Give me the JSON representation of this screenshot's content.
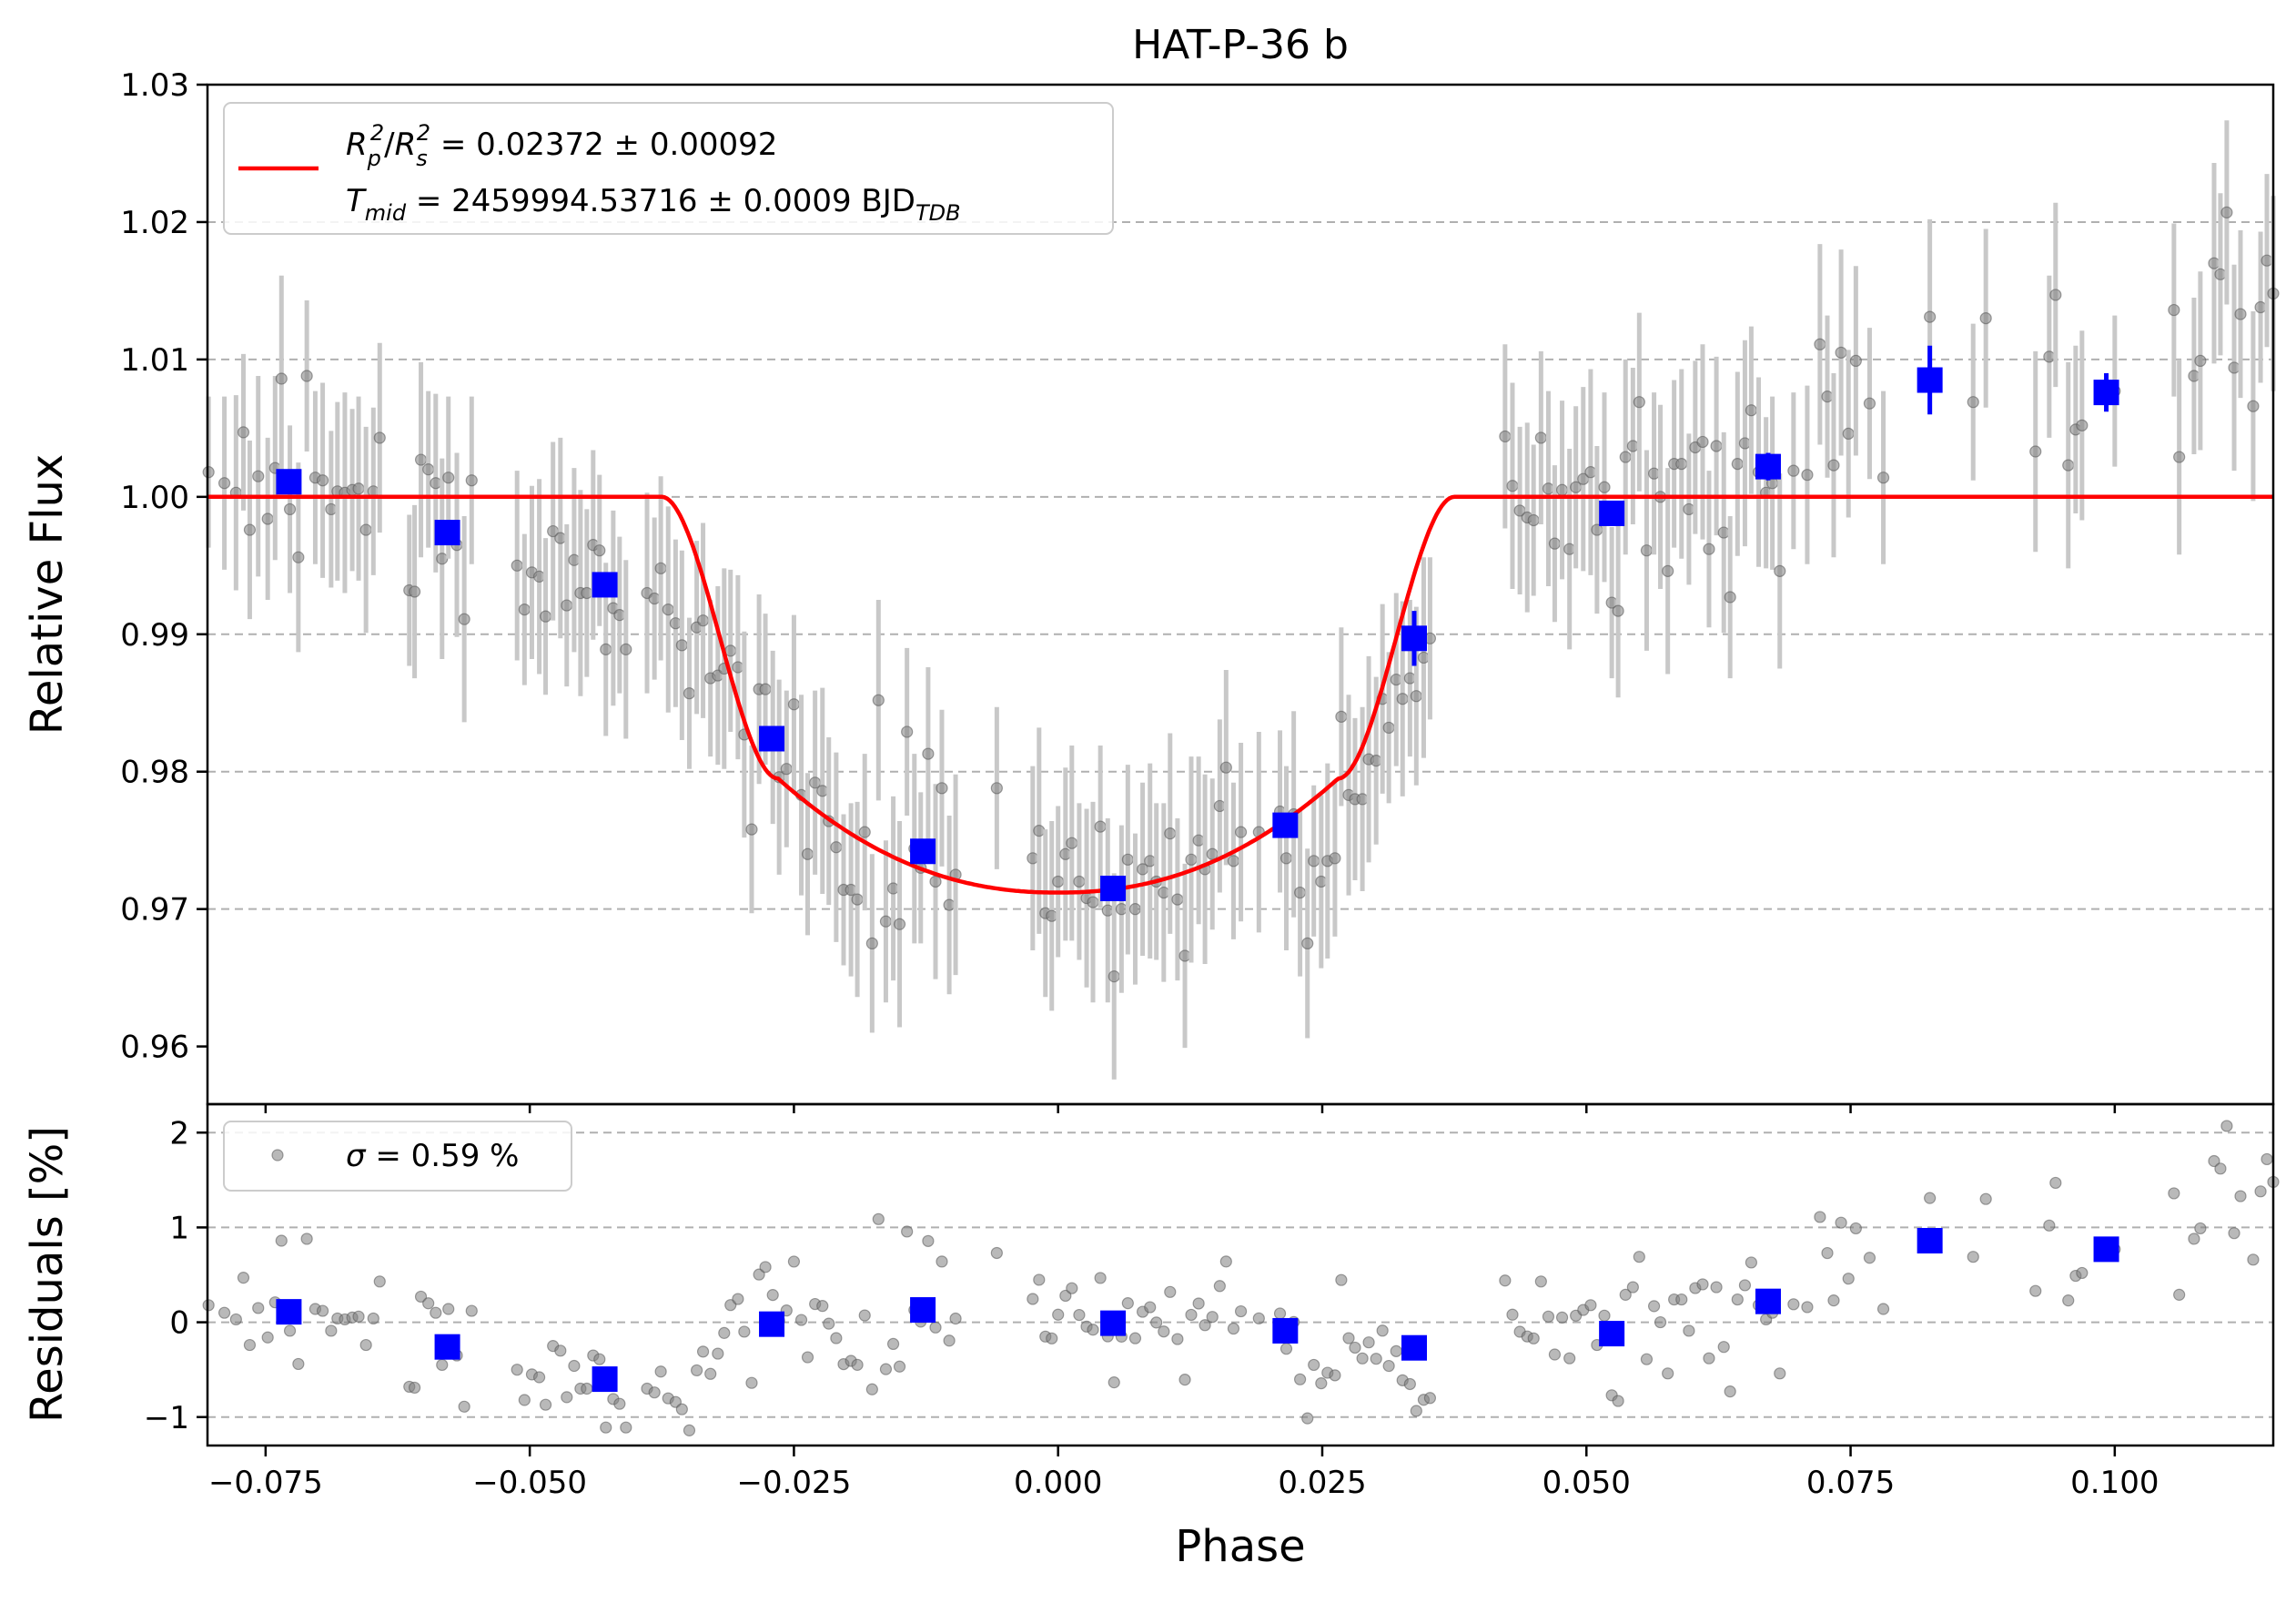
{
  "chart_data": [
    {
      "type": "scatter",
      "panel": "top",
      "title": "HAT-P-36 b",
      "xlabel": "",
      "ylabel": "Relative Flux",
      "xlim": [
        -0.0805,
        0.115
      ],
      "ylim": [
        0.9558,
        1.03
      ],
      "yticks": [
        0.96,
        0.97,
        0.98,
        0.99,
        1.0,
        1.01,
        1.02,
        1.03
      ],
      "ytick_labels": [
        "0.96",
        "0.97",
        "0.98",
        "0.99",
        "1.00",
        "1.01",
        "1.02",
        "1.03"
      ],
      "grid": "y-dashed",
      "legend_placement": "upper-left",
      "legend": {
        "model_label_a": "R",
        "model_label_a_sub": "p",
        "model_label_a_sup": "2",
        "model_label_b": "R",
        "model_label_b_sub": "s",
        "model_label_b_sup": "2",
        "model_label_value": " = 0.02372 ± 0.00092",
        "tmid_label": "T",
        "tmid_sub": "mid",
        "tmid_value": " = 2459994.53716 ± 0.0009 BJD",
        "tmid_unit_sub": "TDB"
      },
      "model_transit": {
        "depth_rp2_rs2": 0.02372,
        "ingress_start": -0.0375,
        "ingress_end": -0.0265,
        "egress_start": 0.0265,
        "egress_end": 0.0375,
        "minimum_flux": 0.9712,
        "contact_flux": 0.9795
      },
      "binned": [
        {
          "x": -0.0728,
          "y": 1.0011,
          "err": 0.0006
        },
        {
          "x": -0.0578,
          "y": 0.9974,
          "err": 0.0006
        },
        {
          "x": -0.0429,
          "y": 0.9936,
          "err": 0.0006
        },
        {
          "x": -0.0271,
          "y": 0.9824,
          "err": 0.0007
        },
        {
          "x": -0.0128,
          "y": 0.9742,
          "err": 0.0009
        },
        {
          "x": 0.0052,
          "y": 0.9715,
          "err": 0.0006
        },
        {
          "x": 0.0215,
          "y": 0.9761,
          "err": 0.0006
        },
        {
          "x": 0.0337,
          "y": 0.9897,
          "err": 0.002
        },
        {
          "x": 0.0524,
          "y": 0.9988,
          "err": 0.0006
        },
        {
          "x": 0.0672,
          "y": 1.0022,
          "err": 0.001
        },
        {
          "x": 0.0825,
          "y": 1.0085,
          "err": 0.0025
        },
        {
          "x": 0.0992,
          "y": 1.0076,
          "err": 0.0014
        }
      ],
      "raw_points": [
        [
          -0.0804,
          1.0018
        ],
        [
          -0.0789,
          1.001
        ],
        [
          -0.0778,
          1.0003
        ],
        [
          -0.0771,
          1.0047
        ],
        [
          -0.0765,
          0.9976
        ],
        [
          -0.0757,
          1.0015
        ],
        [
          -0.0748,
          0.9984
        ],
        [
          -0.0741,
          1.0021
        ],
        [
          -0.0735,
          1.0086
        ],
        [
          -0.0727,
          0.9991
        ],
        [
          -0.0719,
          0.9956
        ],
        [
          -0.0711,
          1.0088
        ],
        [
          -0.0703,
          1.0014
        ],
        [
          -0.0696,
          1.0012
        ],
        [
          -0.0688,
          0.9991
        ],
        [
          -0.0682,
          1.0004
        ],
        [
          -0.0675,
          1.0003
        ],
        [
          -0.0668,
          1.0005
        ],
        [
          -0.0662,
          1.0006
        ],
        [
          -0.0655,
          0.9976
        ],
        [
          -0.0648,
          1.0004
        ],
        [
          -0.0642,
          1.0043
        ],
        [
          -0.0614,
          0.9932
        ],
        [
          -0.0609,
          0.9931
        ],
        [
          -0.0603,
          1.0027
        ],
        [
          -0.0596,
          1.002
        ],
        [
          -0.0589,
          1.001
        ],
        [
          -0.0583,
          0.9955
        ],
        [
          -0.0577,
          1.0014
        ],
        [
          -0.0569,
          0.9965
        ],
        [
          -0.0562,
          0.9911
        ],
        [
          -0.0555,
          1.0012
        ],
        [
          -0.0512,
          0.995
        ],
        [
          -0.0505,
          0.9918
        ],
        [
          -0.0498,
          0.9945
        ],
        [
          -0.0491,
          0.9942
        ],
        [
          -0.0485,
          0.9913
        ],
        [
          -0.0478,
          0.9975
        ],
        [
          -0.0471,
          0.997
        ],
        [
          -0.0465,
          0.9921
        ],
        [
          -0.0458,
          0.9954
        ],
        [
          -0.0452,
          0.993
        ],
        [
          -0.0446,
          0.993
        ],
        [
          -0.044,
          0.9965
        ],
        [
          -0.0434,
          0.9961
        ],
        [
          -0.0428,
          0.9889
        ],
        [
          -0.0421,
          0.9919
        ],
        [
          -0.0415,
          0.9914
        ],
        [
          -0.0409,
          0.9889
        ],
        [
          -0.0389,
          0.993
        ],
        [
          -0.0382,
          0.9926
        ],
        [
          -0.0376,
          0.9948
        ],
        [
          -0.0369,
          0.9918
        ],
        [
          -0.0362,
          0.9908
        ],
        [
          -0.0356,
          0.9892
        ],
        [
          -0.0349,
          0.9857
        ],
        [
          -0.0342,
          0.9905
        ],
        [
          -0.0336,
          0.991
        ],
        [
          -0.0329,
          0.9868
        ],
        [
          -0.0322,
          0.987
        ],
        [
          -0.0316,
          0.9875
        ],
        [
          -0.031,
          0.9888
        ],
        [
          -0.0303,
          0.9876
        ],
        [
          -0.0297,
          0.9827
        ],
        [
          -0.029,
          0.9758
        ],
        [
          -0.0283,
          0.986
        ],
        [
          -0.0277,
          0.986
        ],
        [
          -0.027,
          0.9825
        ],
        [
          -0.0264,
          0.9796
        ],
        [
          -0.0257,
          0.9802
        ],
        [
          -0.025,
          0.9849
        ],
        [
          -0.0243,
          0.9783
        ],
        [
          -0.0237,
          0.974
        ],
        [
          -0.023,
          0.9792
        ],
        [
          -0.0223,
          0.9786
        ],
        [
          -0.0217,
          0.9764
        ],
        [
          -0.021,
          0.9745
        ],
        [
          -0.0203,
          0.9714
        ],
        [
          -0.0196,
          0.9714
        ],
        [
          -0.019,
          0.9707
        ],
        [
          -0.0183,
          0.9756
        ],
        [
          -0.0176,
          0.9675
        ],
        [
          -0.017,
          0.9852
        ],
        [
          -0.0163,
          0.9691
        ],
        [
          -0.0156,
          0.9715
        ],
        [
          -0.015,
          0.9689
        ],
        [
          -0.0143,
          0.9829
        ],
        [
          -0.0136,
          0.9744
        ],
        [
          -0.013,
          0.973
        ],
        [
          -0.0123,
          0.9813
        ],
        [
          -0.0116,
          0.972
        ],
        [
          -0.011,
          0.9788
        ],
        [
          -0.0103,
          0.9703
        ],
        [
          -0.0097,
          0.9725
        ],
        [
          -0.0058,
          0.9788
        ],
        [
          -0.0024,
          0.9737
        ],
        [
          -0.0018,
          0.9757
        ],
        [
          -0.0012,
          0.9697
        ],
        [
          -0.0006,
          0.9695
        ],
        [
          0.0,
          0.972
        ],
        [
          0.0007,
          0.974
        ],
        [
          0.0013,
          0.9748
        ],
        [
          0.002,
          0.972
        ],
        [
          0.0027,
          0.9708
        ],
        [
          0.0033,
          0.9705
        ],
        [
          0.004,
          0.976
        ],
        [
          0.0047,
          0.9699
        ],
        [
          0.0053,
          0.9651
        ],
        [
          0.006,
          0.97
        ],
        [
          0.0066,
          0.9736
        ],
        [
          0.0073,
          0.97
        ],
        [
          0.008,
          0.9729
        ],
        [
          0.0087,
          0.9735
        ],
        [
          0.0093,
          0.972
        ],
        [
          0.01,
          0.9712
        ],
        [
          0.0106,
          0.9755
        ],
        [
          0.0113,
          0.9707
        ],
        [
          0.012,
          0.9666
        ],
        [
          0.0126,
          0.9736
        ],
        [
          0.0133,
          0.975
        ],
        [
          0.0139,
          0.9729
        ],
        [
          0.0146,
          0.974
        ],
        [
          0.0153,
          0.9775
        ],
        [
          0.0159,
          0.9803
        ],
        [
          0.0166,
          0.9735
        ],
        [
          0.0173,
          0.9756
        ],
        [
          0.019,
          0.9756
        ],
        [
          0.021,
          0.9771
        ],
        [
          0.0216,
          0.9737
        ],
        [
          0.0223,
          0.9769
        ],
        [
          0.0229,
          0.9712
        ],
        [
          0.0236,
          0.9675
        ],
        [
          0.0242,
          0.9735
        ],
        [
          0.0249,
          0.972
        ],
        [
          0.0255,
          0.9735
        ],
        [
          0.0262,
          0.9737
        ],
        [
          0.0268,
          0.984
        ],
        [
          0.0275,
          0.9783
        ],
        [
          0.0281,
          0.978
        ],
        [
          0.0288,
          0.978
        ],
        [
          0.0294,
          0.9809
        ],
        [
          0.0301,
          0.9808
        ],
        [
          0.0307,
          0.9853
        ],
        [
          0.0313,
          0.9832
        ],
        [
          0.032,
          0.9867
        ],
        [
          0.0326,
          0.9853
        ],
        [
          0.0333,
          0.9868
        ],
        [
          0.0339,
          0.9855
        ],
        [
          0.0346,
          0.9883
        ],
        [
          0.0352,
          0.9897
        ],
        [
          0.0423,
          1.0044
        ],
        [
          0.043,
          1.0008
        ],
        [
          0.0437,
          0.999
        ],
        [
          0.0444,
          0.9985
        ],
        [
          0.045,
          0.9983
        ],
        [
          0.0457,
          1.0043
        ],
        [
          0.0464,
          1.0006
        ],
        [
          0.047,
          0.9966
        ],
        [
          0.0477,
          1.0005
        ],
        [
          0.0484,
          0.9962
        ],
        [
          0.049,
          1.0007
        ],
        [
          0.0497,
          1.0013
        ],
        [
          0.0504,
          1.0018
        ],
        [
          0.051,
          0.9976
        ],
        [
          0.0517,
          1.0007
        ],
        [
          0.0524,
          0.9923
        ],
        [
          0.053,
          0.9917
        ],
        [
          0.0537,
          1.0029
        ],
        [
          0.0544,
          1.0037
        ],
        [
          0.055,
          1.0069
        ],
        [
          0.0557,
          0.9961
        ],
        [
          0.0564,
          1.0017
        ],
        [
          0.057,
          1.0
        ],
        [
          0.0577,
          0.9946
        ],
        [
          0.0583,
          1.0024
        ],
        [
          0.059,
          1.0024
        ],
        [
          0.0597,
          0.9991
        ],
        [
          0.0603,
          1.0036
        ],
        [
          0.061,
          1.004
        ],
        [
          0.0616,
          0.9962
        ],
        [
          0.0623,
          1.0037
        ],
        [
          0.063,
          0.9974
        ],
        [
          0.0636,
          0.9927
        ],
        [
          0.0643,
          1.0024
        ],
        [
          0.065,
          1.0039
        ],
        [
          0.0656,
          1.0063
        ],
        [
          0.0663,
          1.0018
        ],
        [
          0.067,
          1.0003
        ],
        [
          0.0676,
          1.001
        ],
        [
          0.0683,
          0.9946
        ],
        [
          0.0696,
          1.0019
        ],
        [
          0.0709,
          1.0016
        ],
        [
          0.0721,
          1.0111
        ],
        [
          0.0728,
          1.0073
        ],
        [
          0.0734,
          1.0023
        ],
        [
          0.0741,
          1.0105
        ],
        [
          0.0748,
          1.0046
        ],
        [
          0.0755,
          1.0099
        ],
        [
          0.0768,
          1.0068
        ],
        [
          0.0781,
          1.0014
        ],
        [
          0.0825,
          1.0131
        ],
        [
          0.0866,
          1.0069
        ],
        [
          0.0878,
          1.013
        ],
        [
          0.0925,
          1.0033
        ],
        [
          0.0938,
          1.0102
        ],
        [
          0.0944,
          1.0147
        ],
        [
          0.0956,
          1.0023
        ],
        [
          0.0963,
          1.0049
        ],
        [
          0.0969,
          1.0052
        ],
        [
          0.1,
          1.0077
        ],
        [
          0.1056,
          1.0136
        ],
        [
          0.1061,
          1.0029
        ],
        [
          0.1075,
          1.0088
        ],
        [
          0.1081,
          1.0099
        ],
        [
          0.1094,
          1.017
        ],
        [
          0.11,
          1.0162
        ],
        [
          0.1106,
          1.0207
        ],
        [
          0.1113,
          1.0094
        ],
        [
          0.1119,
          1.0133
        ],
        [
          0.1131,
          1.0066
        ],
        [
          0.1138,
          1.0138
        ],
        [
          0.1144,
          1.0172
        ],
        [
          0.115,
          1.0148
        ]
      ]
    },
    {
      "type": "scatter",
      "panel": "bottom",
      "xlabel": "Phase",
      "ylabel": "Residuals [%]",
      "xlim": [
        -0.0805,
        0.115
      ],
      "ylim": [
        -1.3,
        2.3
      ],
      "xticks": [
        -0.075,
        -0.05,
        -0.025,
        0.0,
        0.025,
        0.05,
        0.075,
        0.1
      ],
      "xtick_labels": [
        "−0.075",
        "−0.050",
        "−0.025",
        "0.000",
        "0.025",
        "0.050",
        "0.075",
        "0.100"
      ],
      "yticks": [
        -1,
        0,
        1,
        2
      ],
      "ytick_labels": [
        "−1",
        "0",
        "1",
        "2"
      ],
      "grid": "y-dashed",
      "legend_placement": "upper-left",
      "legend": {
        "sigma_symbol": "σ",
        "sigma_value": " = 0.59 %"
      },
      "binned_residuals": [
        {
          "x": -0.0728,
          "y": 0.11
        },
        {
          "x": -0.0578,
          "y": -0.26
        },
        {
          "x": -0.0429,
          "y": -0.6
        },
        {
          "x": -0.0271,
          "y": -0.02
        },
        {
          "x": -0.0128,
          "y": 0.13
        },
        {
          "x": 0.0052,
          "y": -0.01
        },
        {
          "x": 0.0215,
          "y": -0.09
        },
        {
          "x": 0.0337,
          "y": -0.27
        },
        {
          "x": 0.0524,
          "y": -0.12
        },
        {
          "x": 0.0672,
          "y": 0.22
        },
        {
          "x": 0.0825,
          "y": 0.86
        },
        {
          "x": 0.0992,
          "y": 0.77
        }
      ]
    }
  ]
}
